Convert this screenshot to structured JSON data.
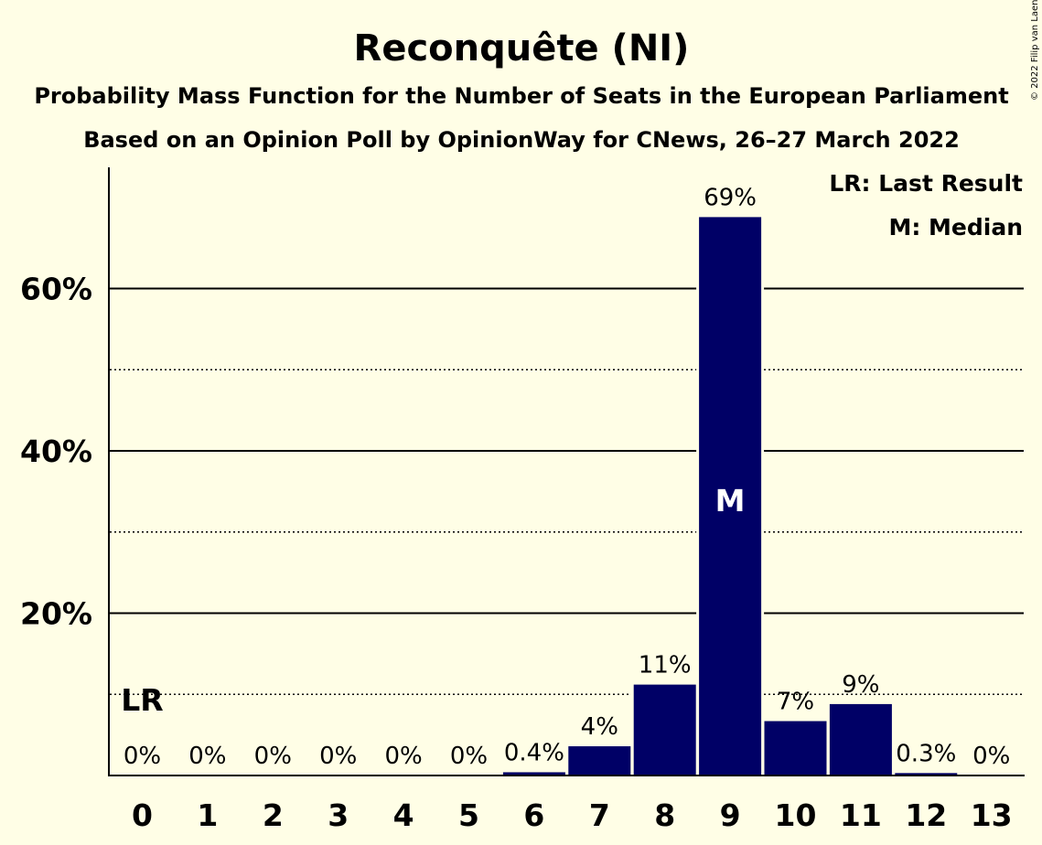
{
  "title": "Reconquête (NI)",
  "subtitle1": "Probability Mass Function for the Number of Seats in the European Parliament",
  "subtitle2": "Based on an Opinion Poll by OpinionWay for CNews, 26–27 March 2022",
  "copyright": "© 2022 Filip van Laenen",
  "legend": {
    "lr": "LR: Last Result",
    "m": "M: Median"
  },
  "colors": {
    "bar": "#000066",
    "background": "#FFFEE6"
  },
  "chart_data": {
    "type": "bar",
    "categories": [
      "0",
      "1",
      "2",
      "3",
      "4",
      "5",
      "6",
      "7",
      "8",
      "9",
      "10",
      "11",
      "12",
      "13"
    ],
    "values": [
      0,
      0,
      0,
      0,
      0,
      0,
      0.4,
      3.6,
      11.2,
      68.8,
      6.7,
      8.8,
      0.3,
      0
    ],
    "data_labels": [
      "0%",
      "0%",
      "0%",
      "0%",
      "0%",
      "0%",
      "0.4%",
      "4%",
      "11%",
      "69%",
      "7%",
      "9%",
      "0.3%",
      "0%"
    ],
    "ylim": [
      0,
      75
    ],
    "y_ticks": [
      20,
      40,
      60
    ],
    "y_tick_labels": [
      "20%",
      "40%",
      "60%"
    ],
    "y_minor_grid": [
      10,
      30,
      50
    ],
    "last_result_category": "0",
    "last_result_marker": "LR",
    "median_category": "9",
    "median_marker": "M"
  }
}
